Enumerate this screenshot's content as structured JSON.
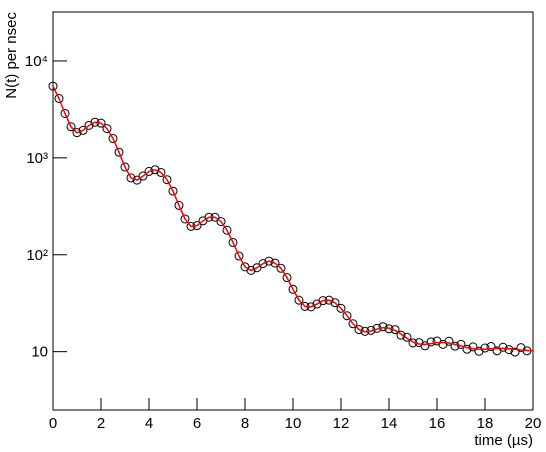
{
  "chart_data": {
    "type": "scatter",
    "xlabel": "time (µs)",
    "ylabel": "N(t) per nsec",
    "xlim": [
      0,
      20
    ],
    "xticks": [
      0,
      2,
      4,
      6,
      8,
      10,
      12,
      14,
      16,
      18,
      20
    ],
    "ylim": [
      2.5,
      32000
    ],
    "log_y": true,
    "yticks": [
      10,
      {
        "value": 100,
        "label": "10²"
      },
      {
        "value": 1000,
        "label": "10³"
      },
      {
        "value": 10000,
        "label": "10⁴"
      }
    ],
    "grid": false,
    "x": [
      0,
      0.25,
      0.5,
      0.75,
      1,
      1.25,
      1.5,
      1.75,
      2,
      2.25,
      2.5,
      2.75,
      3,
      3.25,
      3.5,
      3.75,
      4,
      4.25,
      4.5,
      4.75,
      5,
      5.25,
      5.5,
      5.75,
      6,
      6.25,
      6.5,
      6.75,
      7,
      7.25,
      7.5,
      7.75,
      8,
      8.25,
      8.5,
      8.75,
      9,
      9.25,
      9.5,
      9.75,
      10,
      10.25,
      10.5,
      10.75,
      11,
      11.25,
      11.5,
      11.75,
      12,
      12.25,
      12.5,
      12.75,
      13,
      13.25,
      13.5,
      13.75,
      14,
      14.25,
      14.5,
      14.75,
      15,
      15.25,
      15.5,
      15.75,
      16,
      16.25,
      16.5,
      16.75,
      17,
      17.25,
      17.5,
      17.75,
      18,
      18.25,
      18.5,
      18.75,
      19,
      19.25,
      19.5,
      19.75,
      20
    ],
    "series": [
      {
        "style": "markers",
        "color": "#000000",
        "values": [
          5499,
          4094,
          2871,
          2093,
          1820,
          1920,
          2165,
          2331,
          2282,
          2004,
          1582,
          1144,
          804,
          621,
          589,
          649,
          725,
          753,
          707,
          595,
          454,
          323,
          234,
          196,
          200,
          224,
          244,
          244,
          220,
          179,
          134,
          97,
          75,
          69,
          73.5,
          81,
          86,
          82,
          72.5,
          58,
          44,
          34,
          29.3,
          29,
          31,
          33.6,
          34,
          32,
          28,
          23.5,
          19.4,
          16.9,
          16.2,
          16.6,
          17.4,
          18.1,
          17.2,
          16.9,
          14.8,
          14.1,
          12.3,
          12.4,
          11.5,
          12.6,
          12.9,
          11.9,
          12.8,
          11.4,
          11.9,
          10.6,
          11.2,
          10.1,
          10.9,
          11.3,
          10.2,
          11.1,
          10.5,
          9.9,
          11.0,
          10.2,
          null
        ]
      },
      {
        "style": "line",
        "color": "#ff0000",
        "values": [
          5499,
          4094,
          2871,
          2093,
          1820,
          1920,
          2165,
          2331,
          2282,
          2004,
          1582,
          1144,
          804,
          621,
          589,
          649,
          725,
          753,
          707,
          595,
          454,
          323,
          234,
          196,
          200,
          224,
          244,
          244,
          220,
          179,
          134,
          97,
          75,
          69,
          73.5,
          81,
          86,
          82,
          72.5,
          58,
          44,
          34,
          29.3,
          29,
          31,
          33.6,
          34,
          32,
          28,
          23.5,
          19.4,
          16.9,
          16,
          16.3,
          17.1,
          17.7,
          17.5,
          16.6,
          15.2,
          13.75,
          12.6,
          12,
          11.9,
          12.1,
          12.4,
          12.45,
          12.3,
          11.9,
          11.5,
          11,
          10.7,
          10.6,
          10.6,
          10.7,
          10.8,
          10.8,
          10.7,
          10.6,
          10.4,
          10.3,
          10.2
        ]
      }
    ]
  }
}
